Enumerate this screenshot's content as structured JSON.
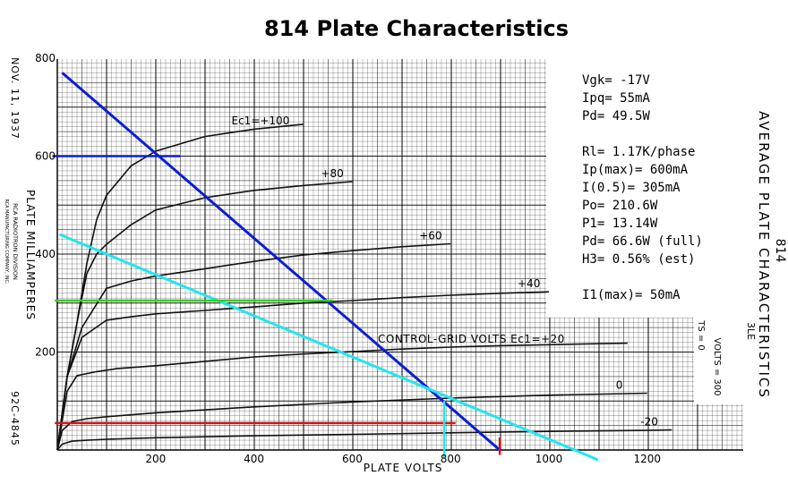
{
  "chart_data": {
    "type": "line",
    "title": "814 Plate Characteristics",
    "xlabel": "PLATE VOLTS",
    "ylabel": "PLATE MILLIAMPERES",
    "xlim": [
      0,
      1400
    ],
    "ylim": [
      0,
      800
    ],
    "grid": true,
    "x_ticks": [
      "200",
      "400",
      "600",
      "800",
      "1000",
      "1200"
    ],
    "y_ticks": [
      "200",
      "400",
      "600",
      "800"
    ],
    "side_title_lines": [
      "814",
      "AVERAGE PLATE CHARACTERISTICS"
    ],
    "date_text": "NOV. 11, 1937",
    "company_lines": [
      "RCA RADIOTRON DIVISION",
      "RCA MANUFACTURING COMPANY, INC."
    ],
    "drawing_number": "92C-4845",
    "conditions_lines": [
      "VOLTS = 300",
      "TS = 0"
    ],
    "cut_label": "3LE",
    "grid_legend_label": "CONTROL-GRID VOLTS Ec1=+20",
    "series": [
      {
        "name": "Ec1=+100",
        "label": "Ec1=+100",
        "x": [
          0,
          20,
          40,
          60,
          80,
          100,
          150,
          200,
          300,
          400,
          500
        ],
        "y": [
          0,
          150,
          260,
          380,
          470,
          520,
          580,
          610,
          640,
          655,
          665
        ]
      },
      {
        "name": "+80",
        "label": "+80",
        "x": [
          0,
          20,
          40,
          60,
          80,
          100,
          150,
          200,
          300,
          400,
          500,
          600
        ],
        "y": [
          0,
          150,
          260,
          360,
          400,
          420,
          460,
          490,
          515,
          530,
          540,
          548
        ]
      },
      {
        "name": "+60",
        "label": "+60",
        "x": [
          0,
          20,
          50,
          100,
          150,
          200,
          300,
          400,
          500,
          600,
          700,
          800
        ],
        "y": [
          0,
          150,
          250,
          330,
          345,
          355,
          370,
          385,
          398,
          407,
          415,
          421
        ]
      },
      {
        "name": "+40",
        "label": "+40",
        "x": [
          0,
          20,
          50,
          100,
          150,
          200,
          300,
          400,
          500,
          600,
          700,
          800,
          900,
          1000
        ],
        "y": [
          0,
          150,
          230,
          265,
          272,
          278,
          285,
          292,
          300,
          305,
          311,
          316,
          320,
          323
        ]
      },
      {
        "name": "+20",
        "label": "",
        "x": [
          0,
          20,
          40,
          80,
          120,
          200,
          300,
          400,
          500,
          600,
          700,
          800,
          900,
          1000,
          1100,
          1160
        ],
        "y": [
          0,
          120,
          152,
          160,
          166,
          172,
          181,
          190,
          196,
          201,
          206,
          210,
          213,
          215,
          217,
          218
        ]
      },
      {
        "name": "0",
        "label": "0",
        "x": [
          0,
          10,
          30,
          60,
          100,
          200,
          400,
          600,
          800,
          1000,
          1200
        ],
        "y": [
          0,
          40,
          58,
          64,
          68,
          76,
          88,
          98,
          106,
          112,
          116
        ]
      },
      {
        "name": "-20",
        "label": "-20",
        "x": [
          0,
          10,
          30,
          60,
          100,
          200,
          400,
          600,
          800,
          1000,
          1200,
          1250
        ],
        "y": [
          0,
          12,
          18,
          20,
          22,
          25,
          29,
          32,
          35,
          38,
          40,
          41
        ]
      }
    ],
    "overlay_lines": [
      {
        "color": "#0c1ed0",
        "x": [
          10,
          900
        ],
        "y": [
          770,
          0
        ]
      },
      {
        "color": "#0c1ed0",
        "x": [
          -10,
          250
        ],
        "y": [
          600,
          600
        ]
      },
      {
        "color": "#22e6ee",
        "x": [
          5,
          1100
        ],
        "y": [
          440,
          -20
        ]
      },
      {
        "color": "#33cc22",
        "x": [
          -5,
          560
        ],
        "y": [
          305,
          305
        ]
      },
      {
        "color": "#dd1111",
        "x": [
          -5,
          810
        ],
        "y": [
          55,
          55
        ]
      },
      {
        "color": "#dd1111",
        "x": [
          900,
          900
        ],
        "y": [
          -10,
          26
        ]
      },
      {
        "color": "#22e6ee",
        "x": [
          787,
          787
        ],
        "y": [
          -15,
          100
        ]
      }
    ],
    "annotations": [
      "Vgk= -17V",
      "Ipq= 55mA",
      "Pd= 49.5W",
      "",
      "Rl= 1.17K/phase",
      "Ip(max)= 600mA",
      "I(0.5)= 305mA",
      "Po= 210.6W",
      "P1= 13.14W",
      "Pd= 66.6W (full)",
      "H3= 0.56% (est)",
      "",
      "I1(max)= 50mA"
    ]
  }
}
